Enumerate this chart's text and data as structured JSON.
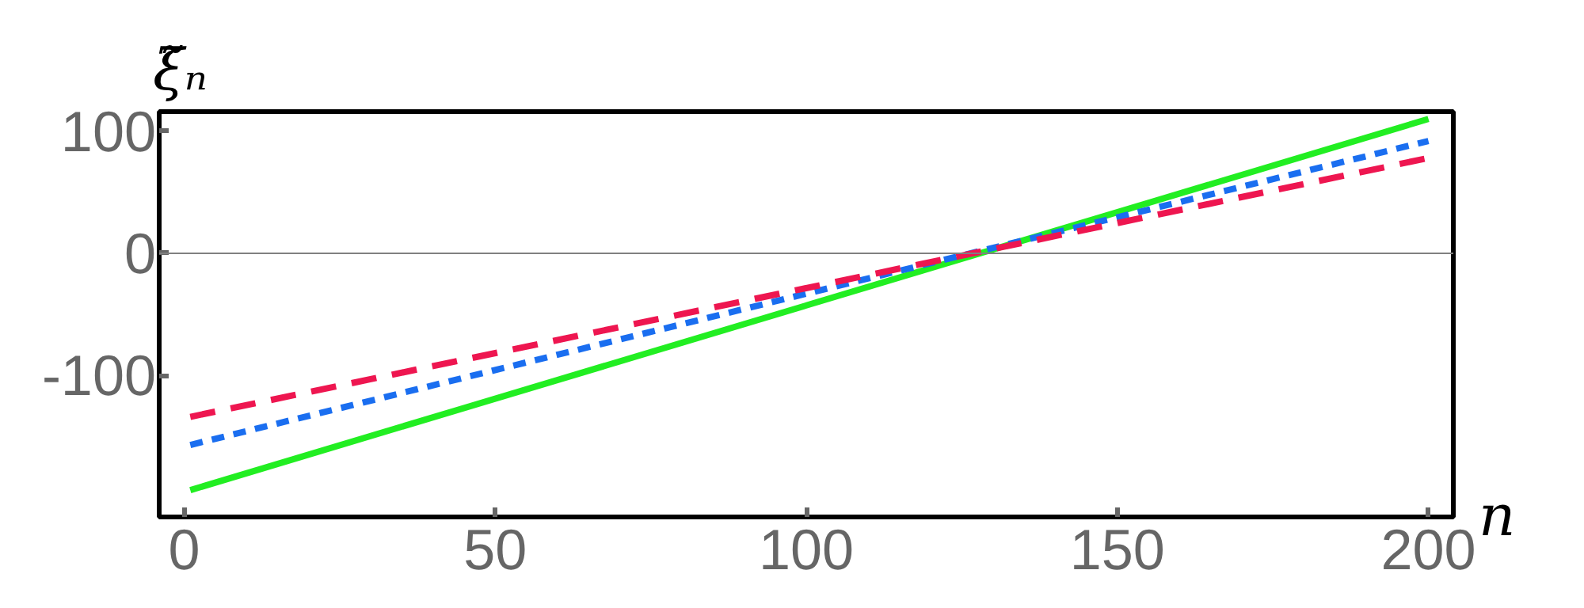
{
  "chart_data": {
    "type": "line",
    "xlabel": "n",
    "ylabel": "ξ̃ₙ",
    "xlim": [
      -4,
      204
    ],
    "ylim": [
      -216,
      116
    ],
    "xticks": [
      0,
      50,
      100,
      150,
      200
    ],
    "yticks": [
      100,
      0,
      -100
    ],
    "grid": false,
    "x": [
      1,
      200
    ],
    "ref_lines": [
      {
        "axis": "y",
        "value": 0,
        "color": "#808080"
      }
    ],
    "series": [
      {
        "color": "#22ee22",
        "line_style": "solid",
        "values": [
          -194,
          110
        ]
      },
      {
        "color": "#1a6ef0",
        "line_style": "dotted",
        "values": [
          -157,
          92
        ]
      },
      {
        "color": "#ee1650",
        "line_style": "dashed",
        "values": [
          -134,
          78
        ]
      }
    ]
  }
}
